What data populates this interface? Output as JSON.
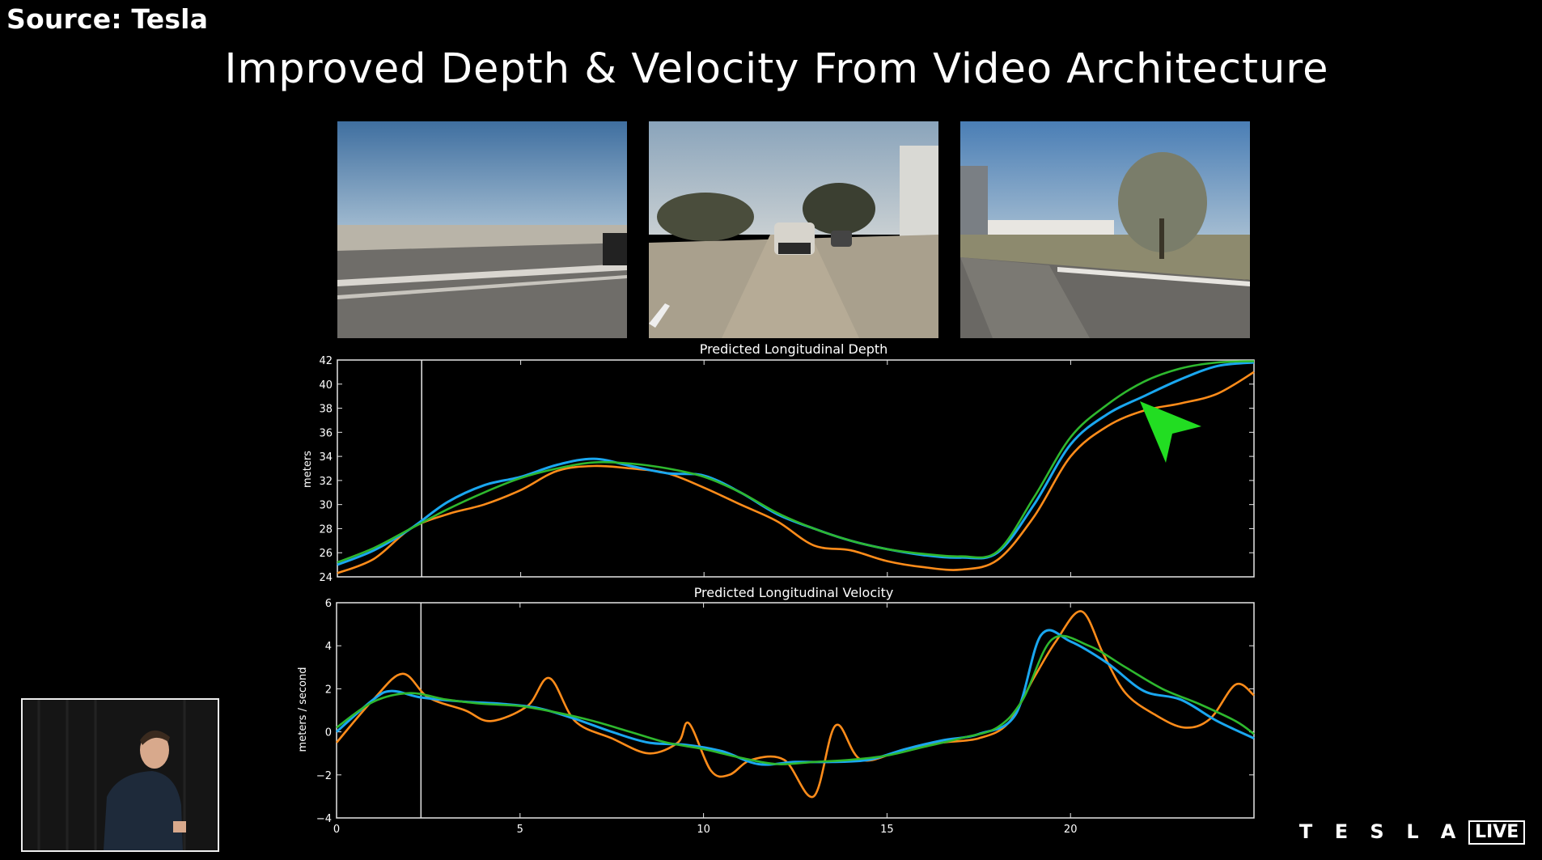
{
  "source_label": "Source: Tesla",
  "slide_title": "Improved Depth & Velocity From Video Architecture",
  "brand": {
    "letters": [
      "T",
      "E",
      "S",
      "L",
      "A"
    ],
    "live_badge": "LIVE"
  },
  "colors": {
    "orange": "#ff8c1a",
    "blue": "#1aa7f0",
    "green": "#2eb82e",
    "cursor": "#22dd22"
  },
  "chart_data": [
    {
      "type": "line",
      "title": "Predicted Longitudinal Depth",
      "ylabel": "meters",
      "xlabel": "",
      "xlim": [
        0,
        25
      ],
      "ylim": [
        24,
        42
      ],
      "xticks": [],
      "yticks": [
        "24",
        "26",
        "28",
        "30",
        "32",
        "34",
        "36",
        "38",
        "40",
        "42"
      ],
      "marker_x": 2.3,
      "series": [
        {
          "color": "#ff8c1a",
          "x": [
            0,
            1,
            2,
            3,
            4,
            5,
            6,
            7,
            8,
            9,
            10,
            11,
            12,
            13,
            14,
            15,
            16,
            17,
            18,
            19,
            20,
            21,
            22,
            23,
            24,
            25
          ],
          "y": [
            24.3,
            25.5,
            28.0,
            29.2,
            30.0,
            31.2,
            32.8,
            33.2,
            33.0,
            32.6,
            31.4,
            30.0,
            28.6,
            26.6,
            26.2,
            25.3,
            24.8,
            24.6,
            25.4,
            29.0,
            34.0,
            36.5,
            37.8,
            38.4,
            39.2,
            41.0
          ]
        },
        {
          "color": "#1aa7f0",
          "x": [
            0,
            1,
            2,
            3,
            4,
            5,
            6,
            7,
            8,
            9,
            10,
            11,
            12,
            13,
            14,
            15,
            16,
            17,
            18,
            19,
            20,
            21,
            22,
            23,
            24,
            25
          ],
          "y": [
            25.0,
            26.2,
            28.0,
            30.2,
            31.6,
            32.3,
            33.3,
            33.8,
            33.2,
            32.6,
            32.4,
            31.0,
            29.2,
            28.0,
            27.0,
            26.3,
            25.8,
            25.6,
            26.0,
            30.0,
            35.0,
            37.5,
            39.0,
            40.4,
            41.5,
            41.8
          ]
        },
        {
          "color": "#2eb82e",
          "x": [
            0,
            1,
            2,
            3,
            4,
            5,
            6,
            7,
            8,
            9,
            10,
            11,
            12,
            13,
            14,
            15,
            16,
            17,
            18,
            19,
            20,
            21,
            22,
            23,
            24,
            25
          ],
          "y": [
            25.2,
            26.4,
            28.0,
            29.6,
            31.0,
            32.2,
            33.0,
            33.5,
            33.4,
            33.0,
            32.3,
            31.0,
            29.3,
            28.0,
            27.0,
            26.3,
            25.9,
            25.7,
            26.1,
            30.6,
            35.6,
            38.3,
            40.2,
            41.3,
            41.8,
            41.9
          ]
        }
      ]
    },
    {
      "type": "line",
      "title": "Predicted Longitudinal Velocity",
      "ylabel": "meters / second",
      "xlabel": "",
      "xlim": [
        0,
        25
      ],
      "ylim": [
        -4,
        6
      ],
      "xticks": [
        "0",
        "5",
        "10",
        "15",
        "20"
      ],
      "yticks": [
        "−4",
        "−2",
        "0",
        "2",
        "4",
        "6"
      ],
      "marker_x": 2.3,
      "series": [
        {
          "color": "#ff8c1a",
          "x": [
            0,
            1,
            1.8,
            2.5,
            3.5,
            4.2,
            5.2,
            5.8,
            6.5,
            7.5,
            8.5,
            9.3,
            9.6,
            10.2,
            10.7,
            11.3,
            12.2,
            13.0,
            13.6,
            14.3,
            15.5,
            16.5,
            17.5,
            18.3,
            19.0,
            19.6,
            20.3,
            20.9,
            21.5,
            22.3,
            23.1,
            23.8,
            24.5,
            25
          ],
          "y": [
            -0.5,
            1.5,
            2.7,
            1.6,
            1.0,
            0.5,
            1.2,
            2.5,
            0.5,
            -0.3,
            -1.0,
            -0.5,
            0.4,
            -1.8,
            -2.0,
            -1.3,
            -1.3,
            -3.0,
            0.3,
            -1.3,
            -0.8,
            -0.5,
            -0.3,
            0.4,
            2.5,
            4.2,
            5.6,
            3.6,
            1.8,
            0.8,
            0.2,
            0.6,
            2.2,
            1.7
          ]
        },
        {
          "color": "#1aa7f0",
          "x": [
            0,
            1,
            1.5,
            2.3,
            3.5,
            4.5,
            5.5,
            6.5,
            7.5,
            8.5,
            9.5,
            10.5,
            11.5,
            12.5,
            13.5,
            14.5,
            15.5,
            16.5,
            17.5,
            18.5,
            19.2,
            20,
            21,
            22,
            23,
            24,
            25
          ],
          "y": [
            0,
            1.5,
            1.9,
            1.6,
            1.4,
            1.3,
            1.1,
            0.6,
            0.0,
            -0.5,
            -0.6,
            -0.9,
            -1.5,
            -1.4,
            -1.4,
            -1.3,
            -0.8,
            -0.4,
            -0.1,
            0.8,
            4.5,
            4.2,
            3.2,
            1.9,
            1.5,
            0.5,
            -0.3
          ]
        },
        {
          "color": "#2eb82e",
          "x": [
            0,
            1,
            2,
            3,
            4,
            5,
            6,
            7,
            8,
            9,
            10,
            11,
            12,
            13,
            14,
            15,
            16,
            17,
            18,
            18.7,
            19.5,
            20.5,
            21.5,
            22.5,
            23.5,
            24.5,
            25
          ],
          "y": [
            0.2,
            1.4,
            1.8,
            1.5,
            1.3,
            1.2,
            0.9,
            0.5,
            0.0,
            -0.5,
            -0.8,
            -1.2,
            -1.5,
            -1.4,
            -1.3,
            -1.1,
            -0.7,
            -0.3,
            0.2,
            1.5,
            4.3,
            4.0,
            3.0,
            2.0,
            1.3,
            0.5,
            -0.1
          ]
        }
      ]
    }
  ]
}
